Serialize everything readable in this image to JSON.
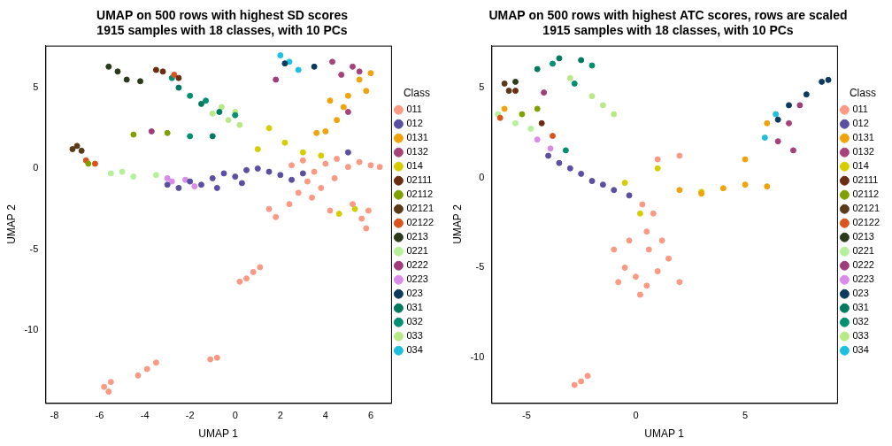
{
  "chart_data": [
    {
      "type": "scatter",
      "title": [
        "UMAP on 500 rows with highest SD scores",
        "1915 samples with 18 classes, with 10 PCs"
      ],
      "x_label": "UMAP 1",
      "y_label": "UMAP 2",
      "legend_title": "Class",
      "xlim": [
        -8.4,
        6.9
      ],
      "ylim": [
        -14.5,
        7.6
      ],
      "xticks": [
        -8,
        -6,
        -4,
        -2,
        0,
        2,
        4,
        6
      ],
      "yticks": [
        -10,
        -5,
        0,
        5
      ],
      "grid": false,
      "legend": "right",
      "marker": "circle",
      "series": [
        {
          "name": "011",
          "color": "#FA9A84",
          "values": [
            [
              2.5,
              0.2
            ],
            [
              3,
              0.5
            ],
            [
              3.5,
              -0.2
            ],
            [
              4,
              0.3
            ],
            [
              4.5,
              0.6
            ],
            [
              5,
              0.1
            ],
            [
              5.5,
              0.4
            ],
            [
              6,
              0.2
            ],
            [
              6.4,
              0.1
            ],
            [
              3.2,
              -0.8
            ],
            [
              3.8,
              -1.2
            ],
            [
              4.4,
              -0.6
            ],
            [
              2.8,
              -1.5
            ],
            [
              1.5,
              -2.5
            ],
            [
              1.8,
              -3
            ],
            [
              2.4,
              -2.2
            ],
            [
              3.4,
              -1.8
            ],
            [
              4.2,
              -2.6
            ],
            [
              5.2,
              -2.2
            ],
            [
              5.6,
              -3.1
            ],
            [
              5.8,
              -3.7
            ],
            [
              5.9,
              -2.6
            ],
            [
              0.5,
              -6.8
            ],
            [
              0.8,
              -6.4
            ],
            [
              1.1,
              -6.1
            ],
            [
              0.2,
              -7
            ],
            [
              -0.8,
              -11.7
            ],
            [
              -1.1,
              -11.8
            ],
            [
              -3.5,
              -12
            ],
            [
              -3.9,
              -12.4
            ],
            [
              -4.3,
              -12.8
            ],
            [
              -5.5,
              -13.2
            ],
            [
              -5.8,
              -13.5
            ],
            [
              -5.6,
              -13.8
            ]
          ]
        },
        {
          "name": "012",
          "color": "#5A4FA3",
          "values": [
            [
              -3,
              -1
            ],
            [
              -2.5,
              -1.2
            ],
            [
              -2,
              -0.8
            ],
            [
              -1.5,
              -1
            ],
            [
              -1,
              -0.6
            ],
            [
              -0.5,
              -0.3
            ],
            [
              0,
              -0.5
            ],
            [
              0.5,
              -0.1
            ],
            [
              1,
              0
            ],
            [
              1.5,
              -0.2
            ],
            [
              2,
              -0.4
            ],
            [
              2.5,
              -0.7
            ],
            [
              3,
              -0.3
            ],
            [
              -0.8,
              -1.2
            ],
            [
              0.3,
              -0.9
            ],
            [
              5,
              1
            ]
          ]
        },
        {
          "name": "0131",
          "color": "#F0A30A",
          "values": [
            [
              4,
              2.3
            ],
            [
              4.5,
              3
            ],
            [
              5,
              4.5
            ],
            [
              5.5,
              5.5
            ],
            [
              4.8,
              3.8
            ],
            [
              5.8,
              4.8
            ],
            [
              6,
              5.9
            ],
            [
              4.2,
              4.2
            ],
            [
              3.6,
              2.2
            ]
          ]
        },
        {
          "name": "0132",
          "color": "#A6427A",
          "values": [
            [
              4.7,
              5.8
            ],
            [
              5.2,
              6.3
            ],
            [
              4.3,
              6.6
            ],
            [
              5,
              3.5
            ],
            [
              5.5,
              6
            ]
          ]
        },
        {
          "name": "014",
          "color": "#D6CD00",
          "values": [
            [
              1.5,
              2.5
            ],
            [
              3,
              1
            ],
            [
              2.2,
              1.6
            ],
            [
              3.8,
              0.8
            ],
            [
              4.6,
              -2.8
            ],
            [
              5.3,
              -2.5
            ],
            [
              1,
              1.2
            ]
          ]
        },
        {
          "name": "02111",
          "color": "#6B2D12",
          "values": [
            [
              -3.2,
              6
            ],
            [
              -2.5,
              5.6
            ],
            [
              -3.5,
              6.1
            ]
          ]
        },
        {
          "name": "02112",
          "color": "#7FA000",
          "values": [
            [
              -6.5,
              0.3
            ],
            [
              -4.5,
              2.1
            ],
            [
              -3,
              2.2
            ]
          ]
        },
        {
          "name": "02121",
          "color": "#5B3A1A",
          "values": [
            [
              -7,
              1.4
            ],
            [
              -7.2,
              1.2
            ],
            [
              -6.8,
              1.1
            ]
          ]
        },
        {
          "name": "02122",
          "color": "#D9541E",
          "values": [
            [
              -6.6,
              0.5
            ],
            [
              -6.2,
              0.3
            ],
            [
              -2.7,
              5.8
            ]
          ]
        },
        {
          "name": "0213",
          "color": "#2B3A1A",
          "values": [
            [
              -5.6,
              6.3
            ],
            [
              -5.2,
              6
            ],
            [
              -4.8,
              5.5
            ],
            [
              -4.2,
              5.4
            ]
          ]
        },
        {
          "name": "0221",
          "color": "#B5F09A",
          "values": [
            [
              -5.5,
              -0.3
            ],
            [
              -4.5,
              -0.5
            ],
            [
              -3.5,
              -0.4
            ],
            [
              -5,
              -0.2
            ]
          ]
        },
        {
          "name": "0222",
          "color": "#9E3D7A",
          "values": [
            [
              -3.7,
              2.3
            ],
            [
              1.8,
              5.5
            ]
          ]
        },
        {
          "name": "0223",
          "color": "#D98BEA",
          "values": [
            [
              -3,
              -0.6
            ],
            [
              -2.2,
              -0.7
            ],
            [
              -1.8,
              -1.1
            ],
            [
              -2.8,
              -0.8
            ]
          ]
        },
        {
          "name": "023",
          "color": "#0D3B5E",
          "values": [
            [
              2.2,
              6.5
            ],
            [
              3.5,
              6.3
            ]
          ]
        },
        {
          "name": "031",
          "color": "#007A5E",
          "values": [
            [
              -2.5,
              5
            ],
            [
              -1.5,
              4
            ],
            [
              -0.7,
              3.5
            ],
            [
              -1,
              2
            ]
          ]
        },
        {
          "name": "032",
          "color": "#009070",
          "values": [
            [
              -2,
              4.5
            ],
            [
              -1.3,
              4.2
            ],
            [
              -2.8,
              5.6
            ],
            [
              0,
              3.3
            ],
            [
              -2,
              2
            ]
          ]
        },
        {
          "name": "033",
          "color": "#B8E986",
          "values": [
            [
              -0.6,
              3.8
            ],
            [
              0,
              3.5
            ],
            [
              0.2,
              2.7
            ],
            [
              -0.3,
              3
            ],
            [
              -1,
              3.4
            ]
          ]
        },
        {
          "name": "034",
          "color": "#1EC0E0",
          "values": [
            [
              2,
              7
            ],
            [
              2.4,
              6.6
            ],
            [
              2.8,
              6.1
            ]
          ]
        }
      ]
    },
    {
      "type": "scatter",
      "title": [
        "UMAP on 500 rows with highest ATC scores, rows are scaled",
        "1915 samples with 18 classes, with 10 PCs"
      ],
      "x_label": "UMAP 1",
      "y_label": "UMAP 2",
      "legend_title": "Class",
      "xlim": [
        -6.6,
        9.2
      ],
      "ylim": [
        -12.5,
        7.3
      ],
      "xticks": [
        -5,
        0,
        5
      ],
      "yticks": [
        -10,
        -5,
        0,
        5
      ],
      "grid": false,
      "legend": "right",
      "marker": "circle",
      "series": [
        {
          "name": "011",
          "color": "#FA9A84",
          "values": [
            [
              -1,
              -4
            ],
            [
              -0.5,
              -5
            ],
            [
              0,
              -5.5
            ],
            [
              0.5,
              -6
            ],
            [
              1,
              -5.2
            ],
            [
              1.5,
              -4.5
            ],
            [
              2,
              -5.8
            ],
            [
              0.2,
              -6.5
            ],
            [
              -0.3,
              -3.5
            ],
            [
              0.5,
              -3
            ],
            [
              0.8,
              -2
            ],
            [
              0.3,
              -1.5
            ],
            [
              0.6,
              -4
            ],
            [
              1.2,
              -3.5
            ],
            [
              -0.8,
              -5.8
            ],
            [
              -2.5,
              -11.3
            ],
            [
              -2.8,
              -11.5
            ],
            [
              -2.2,
              -11
            ],
            [
              1,
              1
            ],
            [
              2,
              1.2
            ]
          ]
        },
        {
          "name": "012",
          "color": "#5A4FA3",
          "values": [
            [
              -4,
              1.2
            ],
            [
              -3.5,
              0.8
            ],
            [
              -3,
              0.5
            ],
            [
              -2.5,
              0.2
            ],
            [
              -2,
              -0.2
            ],
            [
              -1.5,
              -0.4
            ],
            [
              -1,
              -0.7
            ],
            [
              -0.3,
              -1
            ]
          ]
        },
        {
          "name": "0131",
          "color": "#F0A30A",
          "values": [
            [
              2,
              -0.7
            ],
            [
              3,
              -0.9
            ],
            [
              4,
              -0.6
            ],
            [
              5,
              -0.4
            ],
            [
              6,
              -0.5
            ],
            [
              5,
              1
            ],
            [
              6,
              3
            ],
            [
              -6,
              3.8
            ]
          ]
        },
        {
          "name": "0132",
          "color": "#A6427A",
          "values": [
            [
              6.5,
              2
            ],
            [
              7,
              3
            ],
            [
              7.2,
              1.5
            ]
          ]
        },
        {
          "name": "014",
          "color": "#D6CD00",
          "values": [
            [
              -0.5,
              -0.3
            ],
            [
              0.2,
              -2
            ],
            [
              1,
              0.5
            ],
            [
              3,
              -0.8
            ]
          ]
        },
        {
          "name": "02111",
          "color": "#6B2D12",
          "values": [
            [
              -5.5,
              4.8
            ],
            [
              -4.3,
              3
            ]
          ]
        },
        {
          "name": "02112",
          "color": "#7FA000",
          "values": [
            [
              -5.2,
              3.5
            ],
            [
              -4.5,
              3.8
            ]
          ]
        },
        {
          "name": "02121",
          "color": "#5B3A1A",
          "values": [
            [
              -6,
              5.2
            ],
            [
              -5.8,
              4.8
            ]
          ]
        },
        {
          "name": "02122",
          "color": "#D9541E",
          "values": [
            [
              -6.2,
              3.3
            ],
            [
              -3.8,
              2.3
            ]
          ]
        },
        {
          "name": "0213",
          "color": "#2B3A1A",
          "values": [
            [
              -5.5,
              5.3
            ]
          ]
        },
        {
          "name": "0221",
          "color": "#B5F09A",
          "values": [
            [
              -6.3,
              3.5
            ],
            [
              -5.5,
              3
            ],
            [
              -4.8,
              2.7
            ]
          ]
        },
        {
          "name": "0222",
          "color": "#9E3D7A",
          "values": [
            [
              -4.2,
              4.7
            ],
            [
              7.5,
              4
            ]
          ]
        },
        {
          "name": "0223",
          "color": "#D98BEA",
          "values": [
            [
              -4.5,
              2.1
            ],
            [
              -3.9,
              1.6
            ]
          ]
        },
        {
          "name": "023",
          "color": "#0D3B5E",
          "values": [
            [
              6.5,
              3.2
            ],
            [
              7,
              4
            ],
            [
              7.8,
              4.6
            ],
            [
              8.5,
              5.3
            ],
            [
              8.8,
              5.4
            ]
          ]
        },
        {
          "name": "031",
          "color": "#007A5E",
          "values": [
            [
              -4.5,
              6
            ],
            [
              -3.5,
              6.6
            ],
            [
              -2.5,
              6.5
            ]
          ]
        },
        {
          "name": "032",
          "color": "#009070",
          "values": [
            [
              -3.8,
              6.3
            ],
            [
              -2,
              6.2
            ],
            [
              -2.8,
              5.2
            ],
            [
              -3.2,
              1.5
            ]
          ]
        },
        {
          "name": "033",
          "color": "#B8E986",
          "values": [
            [
              -3,
              5.5
            ],
            [
              -2,
              4.5
            ],
            [
              -1.5,
              4
            ],
            [
              -1,
              3.5
            ]
          ]
        },
        {
          "name": "034",
          "color": "#1EC0E0",
          "values": [
            [
              6.4,
              3.5
            ],
            [
              5.9,
              2.2
            ]
          ]
        }
      ]
    }
  ]
}
